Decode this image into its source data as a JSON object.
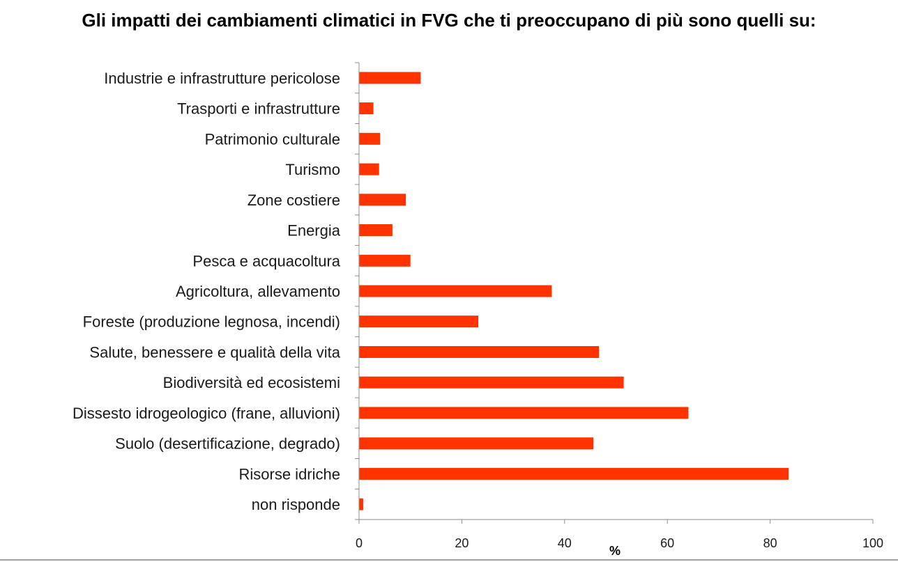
{
  "chart_data": {
    "type": "bar",
    "orientation": "horizontal",
    "title": "Gli impatti dei cambiamenti climatici in FVG che ti preoccupano di più sono quelli su:",
    "xlabel": "%",
    "ylabel": "",
    "xlim": [
      0,
      100
    ],
    "x_ticks": [
      0,
      20,
      40,
      60,
      80,
      100
    ],
    "grid": false,
    "bar_color": "#ff3300",
    "categories": [
      "Industrie e infrastrutture pericolose",
      "Trasporti e infrastrutture",
      "Patrimonio culturale",
      "Turismo",
      "Zone costiere",
      "Energia",
      "Pesca e acquacoltura",
      "Agricoltura, allevamento",
      "Foreste (produzione legnosa, incendi)",
      "Salute, benessere e qualità della vita",
      "Biodiversità ed ecosistemi",
      "Dissesto idrogeologico (frane, alluvioni)",
      "Suolo (desertificazione, degrado)",
      "Risorse idriche",
      "non risponde"
    ],
    "values": [
      12,
      2.8,
      4.1,
      3.9,
      9.1,
      6.5,
      10,
      37.5,
      23.2,
      46.7,
      51.5,
      64.1,
      45.6,
      83.6,
      0.8
    ]
  }
}
